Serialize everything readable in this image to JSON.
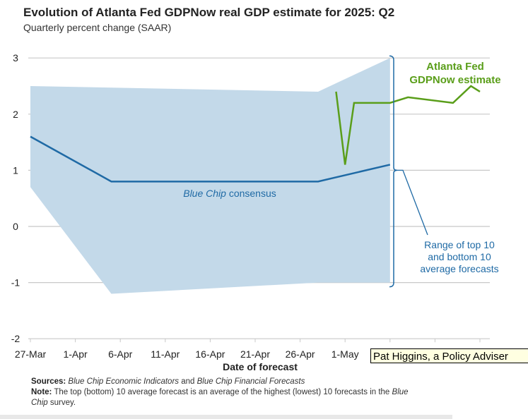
{
  "chart_data": {
    "type": "line",
    "title": "Evolution of Atlanta Fed GDPNow real GDP estimate for 2025: Q2",
    "subtitle": "Quarterly percent change (SAAR)",
    "xlabel": "Date of forecast",
    "ylabel": "",
    "ylim": [
      -2,
      3
    ],
    "yticks": [
      3,
      2,
      1,
      0,
      -1,
      -2
    ],
    "xticks_visible": [
      "27-Mar",
      "1-Apr",
      "6-Apr",
      "11-Apr",
      "16-Apr",
      "21-Apr",
      "26-Apr",
      "1-May"
    ],
    "grid": true,
    "series": [
      {
        "name": "Blue Chip consensus",
        "label_prefix": "Blue Chip",
        "label_suffix": " consensus",
        "color": "#1f6aa5",
        "x": [
          "27-Mar",
          "5-Apr",
          "28-Apr",
          "6-May"
        ],
        "values": [
          1.6,
          0.8,
          0.8,
          1.1
        ]
      },
      {
        "name": "Atlanta Fed GDPNow estimate",
        "label_line1": "Atlanta Fed",
        "label_line2": "GDPNow estimate",
        "color": "#5a9e1a",
        "x": [
          "30-Apr",
          "1-May",
          "2-May",
          "6-May",
          "8-May",
          "13-May",
          "15-May",
          "16-May"
        ],
        "values": [
          2.4,
          1.1,
          2.2,
          2.2,
          2.3,
          2.2,
          2.5,
          2.4
        ]
      }
    ],
    "range_band": {
      "label_lines": [
        "Range of top 10",
        "and bottom 10",
        "average forecasts"
      ],
      "color": "#c3d9e9",
      "upper": {
        "x": [
          "27-Mar",
          "28-Apr",
          "6-May"
        ],
        "values": [
          2.5,
          2.4,
          3.0
        ]
      },
      "lower": {
        "x": [
          "27-Mar",
          "5-Apr",
          "28-Apr",
          "6-May"
        ],
        "values": [
          0.7,
          -1.2,
          -1.0,
          -1.0
        ]
      }
    }
  },
  "notes": {
    "sources_label": "Sources:",
    "sources_1": "Blue Chip Economic Indicators",
    "sources_and": " and ",
    "sources_2": "Blue Chip Financial Forecasts",
    "note_label": "Note:",
    "note_text": " The top (bottom) 10 average forecast is an average of the highest (lowest) 10 forecasts in the ",
    "note_italic": "Blue Chip",
    "note_end": " survey."
  },
  "tooltip": {
    "text": "Pat Higgins, a Policy Adviser"
  }
}
